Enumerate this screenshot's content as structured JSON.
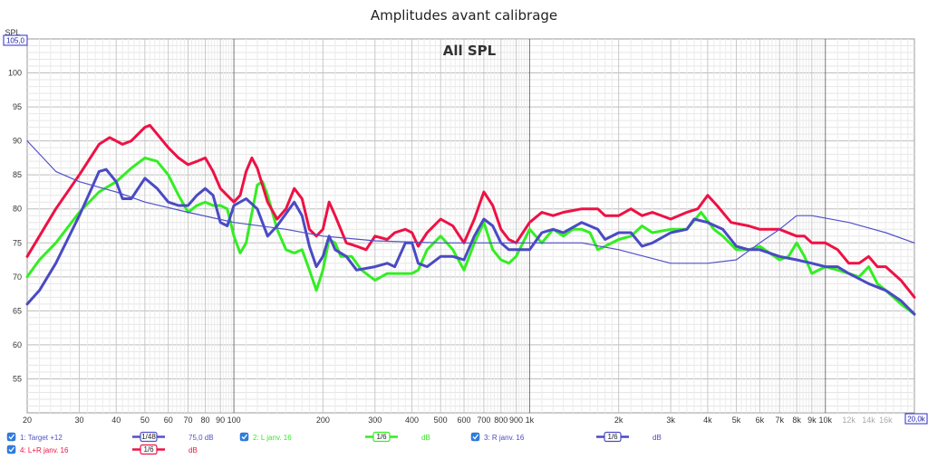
{
  "chart_data": {
    "type": "line",
    "title": "Amplitudes avant calibrage",
    "subtitle": "All SPL",
    "ylabel": "SPL",
    "x_scale": "log",
    "xlim": [
      20,
      20000
    ],
    "ylim": [
      50,
      105
    ],
    "ytop_label": "105,0",
    "xend_label": "20,0k",
    "y_ticks": [
      55,
      60,
      65,
      70,
      75,
      80,
      85,
      90,
      95,
      100
    ],
    "x_ticks_major": [
      {
        "v": 20,
        "t": "20"
      },
      {
        "v": 30,
        "t": "30"
      },
      {
        "v": 40,
        "t": "40"
      },
      {
        "v": 50,
        "t": "50"
      },
      {
        "v": 60,
        "t": "60"
      },
      {
        "v": 70,
        "t": "70"
      },
      {
        "v": 80,
        "t": "80"
      },
      {
        "v": 90,
        "t": "90"
      },
      {
        "v": 100,
        "t": "100"
      },
      {
        "v": 200,
        "t": "200"
      },
      {
        "v": 300,
        "t": "300"
      },
      {
        "v": 400,
        "t": "400"
      },
      {
        "v": 500,
        "t": "500"
      },
      {
        "v": 600,
        "t": "600"
      },
      {
        "v": 700,
        "t": "700"
      },
      {
        "v": 800,
        "t": "800"
      },
      {
        "v": 900,
        "t": "900"
      },
      {
        "v": 1000,
        "t": "1k"
      },
      {
        "v": 2000,
        "t": "2k"
      },
      {
        "v": 3000,
        "t": "3k"
      },
      {
        "v": 4000,
        "t": "4k"
      },
      {
        "v": 5000,
        "t": "5k"
      },
      {
        "v": 6000,
        "t": "6k"
      },
      {
        "v": 7000,
        "t": "7k"
      },
      {
        "v": 8000,
        "t": "8k"
      },
      {
        "v": 9000,
        "t": "9k"
      },
      {
        "v": 10000,
        "t": "10k"
      }
    ],
    "x_ticks_minor": [
      {
        "v": 12000,
        "t": "12k"
      },
      {
        "v": 14000,
        "t": "14k"
      },
      {
        "v": 16000,
        "t": "16k"
      }
    ],
    "series": [
      {
        "name": "1: Target +12",
        "color": "#5151c9",
        "width": 1.2,
        "points": [
          [
            20,
            90
          ],
          [
            25,
            85.5
          ],
          [
            30,
            84
          ],
          [
            40,
            82.5
          ],
          [
            50,
            81
          ],
          [
            70,
            79.5
          ],
          [
            100,
            78
          ],
          [
            150,
            77
          ],
          [
            200,
            76
          ],
          [
            300,
            75.3
          ],
          [
            500,
            75
          ],
          [
            1000,
            75
          ],
          [
            1500,
            75
          ],
          [
            2000,
            74
          ],
          [
            3000,
            72
          ],
          [
            4000,
            72
          ],
          [
            5000,
            72.5
          ],
          [
            6000,
            75
          ],
          [
            7000,
            77
          ],
          [
            8000,
            79
          ],
          [
            9000,
            79
          ],
          [
            12000,
            78
          ],
          [
            16000,
            76.5
          ],
          [
            20000,
            75
          ]
        ]
      },
      {
        "name": "2: L janv. 16",
        "color": "#33ee22",
        "width": 3,
        "points": [
          [
            20,
            70
          ],
          [
            22,
            72.5
          ],
          [
            25,
            75
          ],
          [
            30,
            79.5
          ],
          [
            35,
            82.5
          ],
          [
            40,
            84
          ],
          [
            45,
            86
          ],
          [
            50,
            87.5
          ],
          [
            55,
            87
          ],
          [
            60,
            85
          ],
          [
            65,
            82
          ],
          [
            70,
            79.5
          ],
          [
            75,
            80.5
          ],
          [
            80,
            81
          ],
          [
            85,
            80.5
          ],
          [
            90,
            80.5
          ],
          [
            95,
            80
          ],
          [
            100,
            76
          ],
          [
            105,
            73.5
          ],
          [
            110,
            75
          ],
          [
            120,
            83.5
          ],
          [
            125,
            84
          ],
          [
            130,
            82
          ],
          [
            140,
            77
          ],
          [
            150,
            74
          ],
          [
            160,
            73.5
          ],
          [
            170,
            74
          ],
          [
            180,
            71
          ],
          [
            190,
            68
          ],
          [
            200,
            71
          ],
          [
            210,
            75.5
          ],
          [
            220,
            75
          ],
          [
            230,
            73
          ],
          [
            250,
            73
          ],
          [
            270,
            71
          ],
          [
            300,
            69.5
          ],
          [
            330,
            70.5
          ],
          [
            350,
            70.5
          ],
          [
            370,
            70.5
          ],
          [
            400,
            70.5
          ],
          [
            420,
            71
          ],
          [
            450,
            74
          ],
          [
            500,
            76
          ],
          [
            550,
            74
          ],
          [
            600,
            71
          ],
          [
            650,
            75
          ],
          [
            700,
            78
          ],
          [
            750,
            74
          ],
          [
            800,
            72.5
          ],
          [
            850,
            72
          ],
          [
            900,
            73
          ],
          [
            1000,
            77
          ],
          [
            1100,
            75
          ],
          [
            1200,
            77
          ],
          [
            1300,
            76
          ],
          [
            1400,
            77
          ],
          [
            1500,
            77
          ],
          [
            1600,
            76.5
          ],
          [
            1700,
            74
          ],
          [
            1800,
            74.5
          ],
          [
            2000,
            75.5
          ],
          [
            2200,
            76
          ],
          [
            2400,
            77.5
          ],
          [
            2600,
            76.5
          ],
          [
            3000,
            77
          ],
          [
            3400,
            77
          ],
          [
            3800,
            79.5
          ],
          [
            4200,
            77
          ],
          [
            4500,
            76
          ],
          [
            5000,
            74
          ],
          [
            5500,
            74
          ],
          [
            6000,
            74.5
          ],
          [
            7000,
            72.5
          ],
          [
            7500,
            73
          ],
          [
            8000,
            75
          ],
          [
            8500,
            73
          ],
          [
            9000,
            70.5
          ],
          [
            10000,
            71.5
          ],
          [
            11000,
            71
          ],
          [
            12000,
            70.5
          ],
          [
            13000,
            70
          ],
          [
            14000,
            71.5
          ],
          [
            15000,
            69
          ],
          [
            16000,
            68
          ],
          [
            18000,
            66
          ],
          [
            20000,
            64.5
          ]
        ]
      },
      {
        "name": "3: R janv. 16",
        "color": "#4a4ac4",
        "width": 3,
        "points": [
          [
            20,
            66
          ],
          [
            22,
            68
          ],
          [
            25,
            72
          ],
          [
            30,
            79
          ],
          [
            33,
            83
          ],
          [
            35,
            85.5
          ],
          [
            37,
            85.8
          ],
          [
            40,
            84
          ],
          [
            42,
            81.5
          ],
          [
            45,
            81.5
          ],
          [
            50,
            84.5
          ],
          [
            55,
            83
          ],
          [
            60,
            81
          ],
          [
            65,
            80.5
          ],
          [
            70,
            80.5
          ],
          [
            75,
            82
          ],
          [
            80,
            83
          ],
          [
            85,
            82
          ],
          [
            90,
            78
          ],
          [
            95,
            77.5
          ],
          [
            100,
            80.5
          ],
          [
            110,
            81.5
          ],
          [
            120,
            80
          ],
          [
            130,
            76
          ],
          [
            140,
            77.5
          ],
          [
            160,
            81
          ],
          [
            170,
            79
          ],
          [
            180,
            74.5
          ],
          [
            190,
            71.5
          ],
          [
            200,
            73
          ],
          [
            210,
            76
          ],
          [
            220,
            74
          ],
          [
            240,
            73
          ],
          [
            260,
            71
          ],
          [
            300,
            71.5
          ],
          [
            330,
            72
          ],
          [
            350,
            71.5
          ],
          [
            380,
            75
          ],
          [
            400,
            75
          ],
          [
            420,
            72
          ],
          [
            450,
            71.5
          ],
          [
            500,
            73
          ],
          [
            550,
            73
          ],
          [
            600,
            72.5
          ],
          [
            650,
            76
          ],
          [
            700,
            78.5
          ],
          [
            750,
            77.5
          ],
          [
            800,
            75
          ],
          [
            850,
            74
          ],
          [
            900,
            74
          ],
          [
            1000,
            74
          ],
          [
            1100,
            76.5
          ],
          [
            1200,
            77
          ],
          [
            1300,
            76.5
          ],
          [
            1500,
            78
          ],
          [
            1700,
            77
          ],
          [
            1800,
            75.5
          ],
          [
            2000,
            76.5
          ],
          [
            2200,
            76.5
          ],
          [
            2400,
            74.5
          ],
          [
            2600,
            75
          ],
          [
            3000,
            76.5
          ],
          [
            3400,
            77
          ],
          [
            3600,
            78.5
          ],
          [
            4000,
            78
          ],
          [
            4500,
            77
          ],
          [
            5000,
            74.5
          ],
          [
            5500,
            74
          ],
          [
            6000,
            74
          ],
          [
            7000,
            73
          ],
          [
            8000,
            72.5
          ],
          [
            9000,
            72
          ],
          [
            10000,
            71.5
          ],
          [
            11000,
            71.5
          ],
          [
            12000,
            70.5
          ],
          [
            14000,
            69
          ],
          [
            16000,
            68
          ],
          [
            18000,
            66.5
          ],
          [
            20000,
            64.5
          ]
        ]
      },
      {
        "name": "4: L+R janv. 16",
        "color": "#ee1144",
        "width": 3,
        "points": [
          [
            20,
            73
          ],
          [
            22,
            76
          ],
          [
            25,
            80
          ],
          [
            30,
            85
          ],
          [
            35,
            89.5
          ],
          [
            38,
            90.5
          ],
          [
            42,
            89.5
          ],
          [
            45,
            90
          ],
          [
            50,
            92
          ],
          [
            52,
            92.3
          ],
          [
            55,
            91
          ],
          [
            60,
            89
          ],
          [
            65,
            87.5
          ],
          [
            70,
            86.5
          ],
          [
            75,
            87
          ],
          [
            80,
            87.5
          ],
          [
            85,
            85.5
          ],
          [
            90,
            83
          ],
          [
            100,
            81
          ],
          [
            105,
            82
          ],
          [
            110,
            85.5
          ],
          [
            115,
            87.5
          ],
          [
            120,
            86
          ],
          [
            130,
            81
          ],
          [
            140,
            78.5
          ],
          [
            150,
            80
          ],
          [
            160,
            83
          ],
          [
            170,
            81.5
          ],
          [
            180,
            77
          ],
          [
            190,
            76
          ],
          [
            200,
            77
          ],
          [
            210,
            81
          ],
          [
            220,
            79
          ],
          [
            240,
            75
          ],
          [
            260,
            74.5
          ],
          [
            280,
            74
          ],
          [
            300,
            76
          ],
          [
            330,
            75.5
          ],
          [
            350,
            76.5
          ],
          [
            380,
            77
          ],
          [
            400,
            76.5
          ],
          [
            420,
            74.5
          ],
          [
            450,
            76.5
          ],
          [
            500,
            78.5
          ],
          [
            550,
            77.5
          ],
          [
            600,
            75
          ],
          [
            650,
            78.5
          ],
          [
            700,
            82.5
          ],
          [
            750,
            80.5
          ],
          [
            800,
            77
          ],
          [
            850,
            75.5
          ],
          [
            900,
            75
          ],
          [
            1000,
            78
          ],
          [
            1100,
            79.5
          ],
          [
            1200,
            79
          ],
          [
            1300,
            79.5
          ],
          [
            1500,
            80
          ],
          [
            1700,
            80
          ],
          [
            1800,
            79
          ],
          [
            2000,
            79
          ],
          [
            2200,
            80
          ],
          [
            2400,
            79
          ],
          [
            2600,
            79.5
          ],
          [
            3000,
            78.5
          ],
          [
            3400,
            79.5
          ],
          [
            3700,
            80
          ],
          [
            4000,
            82
          ],
          [
            4300,
            80.5
          ],
          [
            4800,
            78
          ],
          [
            5500,
            77.5
          ],
          [
            6000,
            77
          ],
          [
            7000,
            77
          ],
          [
            8000,
            76
          ],
          [
            8500,
            76
          ],
          [
            9000,
            75
          ],
          [
            10000,
            75
          ],
          [
            11000,
            74
          ],
          [
            12000,
            72
          ],
          [
            13000,
            72
          ],
          [
            14000,
            73
          ],
          [
            15000,
            71.5
          ],
          [
            16000,
            71.5
          ],
          [
            18000,
            69.5
          ],
          [
            20000,
            67
          ]
        ]
      }
    ],
    "legend": [
      {
        "check": "1: Target +12",
        "smooth": "1/48",
        "value": "75,0 dB",
        "color": "#5151c9"
      },
      {
        "check": "2: L janv. 16",
        "smooth": "1/6",
        "value": "dB",
        "color": "#33ee22"
      },
      {
        "check": "3: R janv. 16",
        "smooth": "1/6",
        "value": "dB",
        "color": "#4a4ac4"
      },
      {
        "check": "4: L+R janv. 16",
        "smooth": "1/6",
        "value": "dB",
        "color": "#ee1144"
      }
    ]
  }
}
